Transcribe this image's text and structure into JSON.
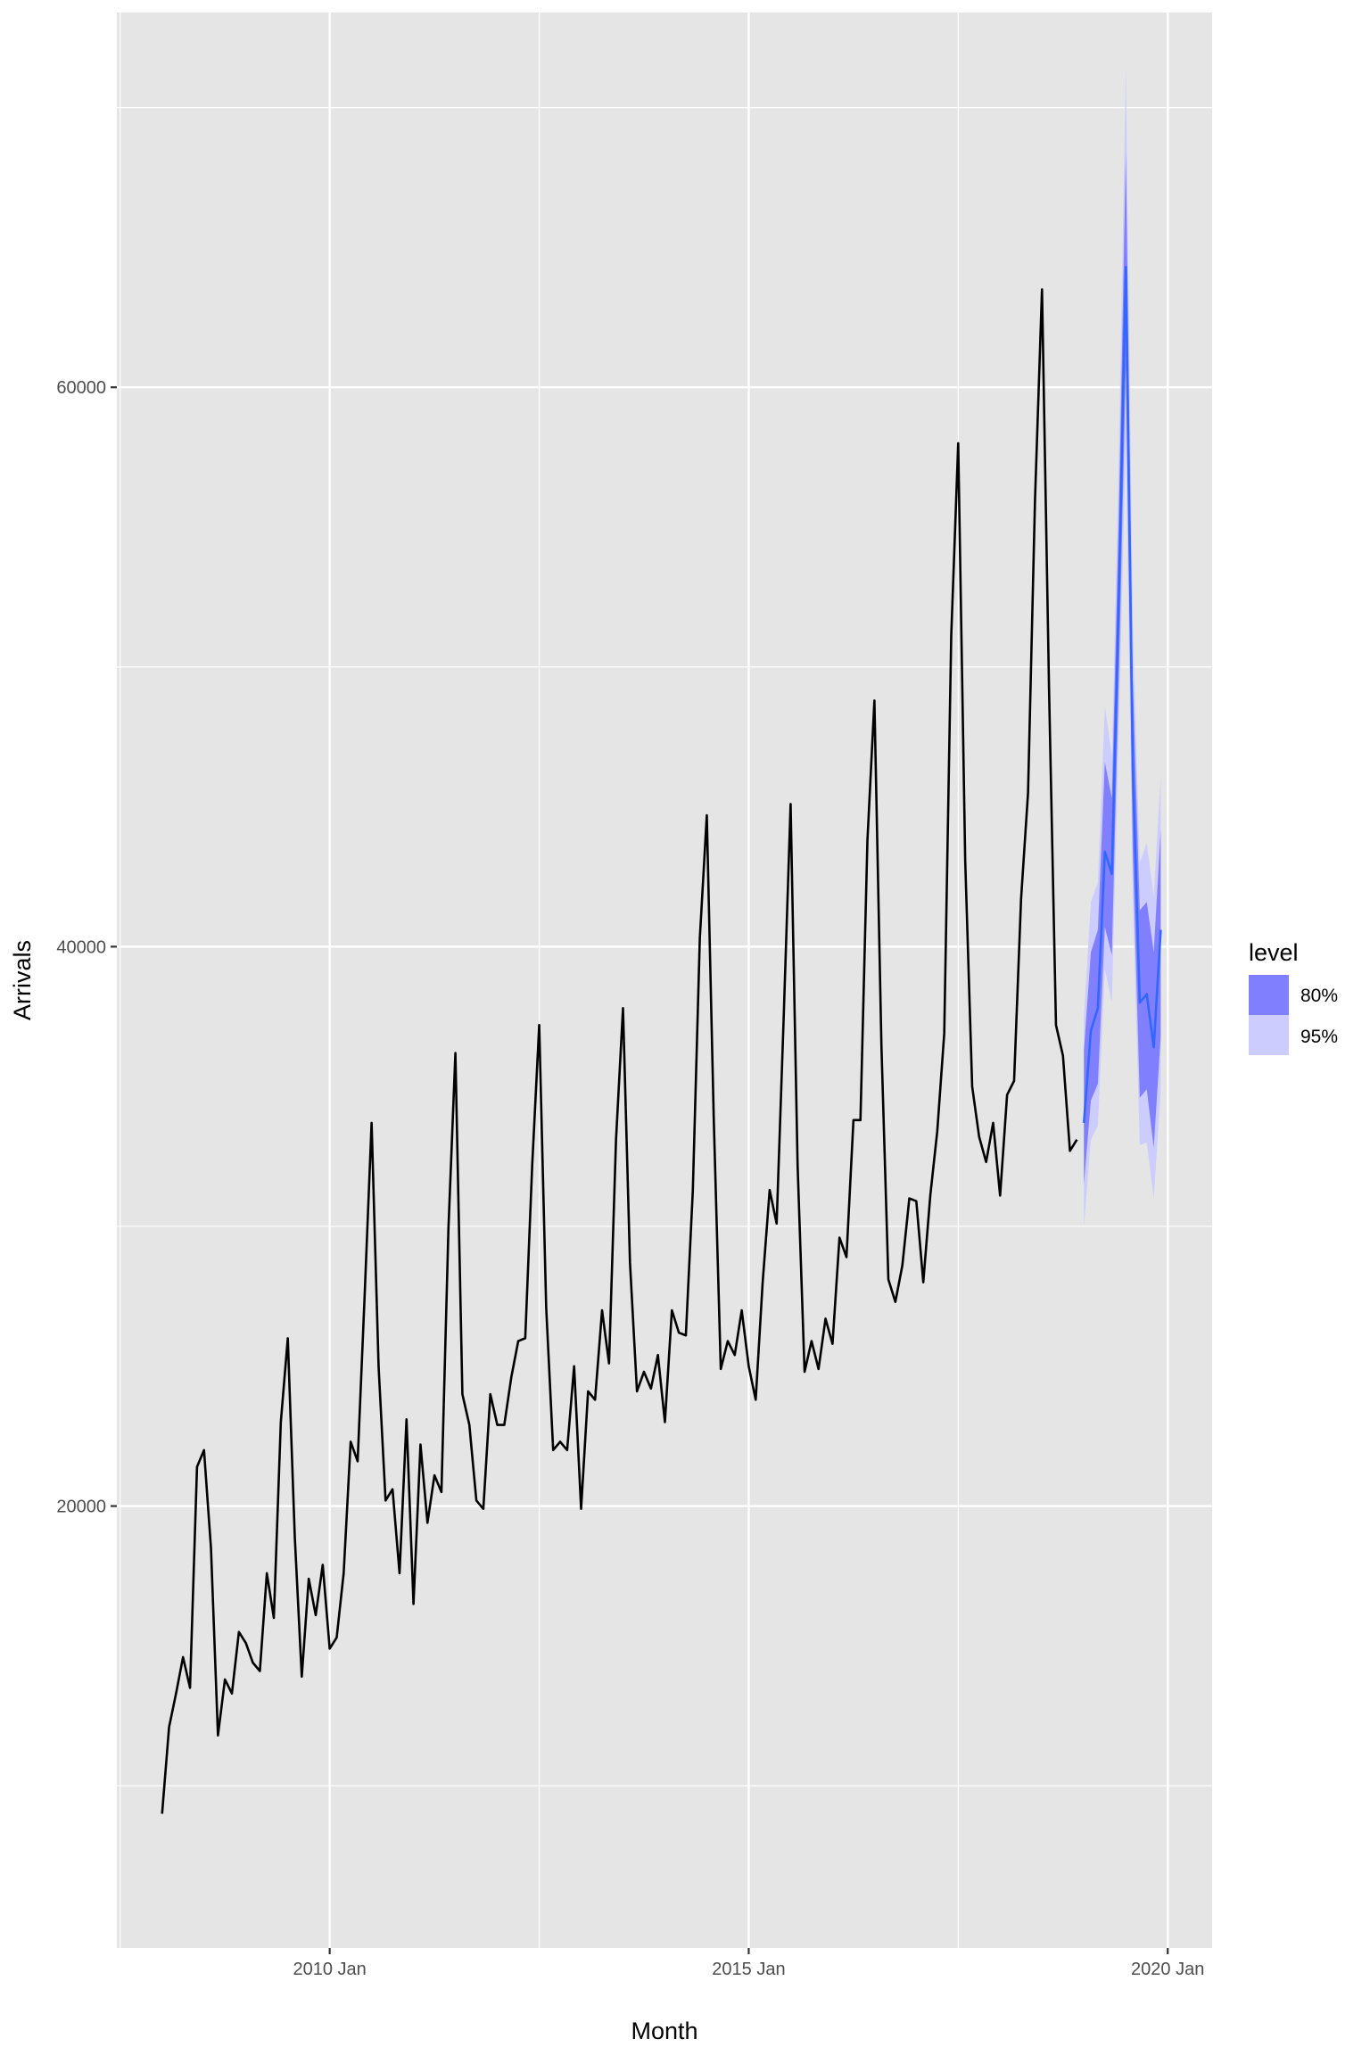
{
  "chart_data": {
    "type": "line",
    "xlabel": "Month",
    "ylabel": "Arrivals",
    "x_ticks": [
      {
        "label": "2010 Jan",
        "value": 2010.0
      },
      {
        "label": "2015 Jan",
        "value": 2015.0
      },
      {
        "label": "2020 Jan",
        "value": 2020.0
      }
    ],
    "y_ticks": [
      {
        "label": "20000",
        "value": 20000
      },
      {
        "label": "40000",
        "value": 40000
      },
      {
        "label": "60000",
        "value": 60000
      }
    ],
    "xlim": [
      2007.46,
      2020.53
    ],
    "ylim": [
      4200,
      73400
    ],
    "grid": true,
    "legend_position": "right",
    "legend": {
      "title": "level",
      "items": [
        {
          "label": "80%",
          "color": "#8080ff"
        },
        {
          "label": "95%",
          "color": "#ccccff"
        }
      ]
    },
    "colors": {
      "panel": "#e5e5e5",
      "grid": "#ffffff",
      "history_line": "#000000",
      "forecast_line": "#3366ff",
      "band_80": "#8080ff",
      "band_95": "#ccccff"
    },
    "history": {
      "start": "2008-01",
      "values": [
        9000,
        12100,
        13300,
        14600,
        13500,
        21400,
        22000,
        18500,
        11800,
        13800,
        13300,
        15500,
        15100,
        14400,
        14100,
        17600,
        16000,
        23000,
        26000,
        18900,
        13900,
        17400,
        16100,
        17900,
        14900,
        15300,
        17600,
        22300,
        21600,
        27500,
        33700,
        25000,
        20200,
        20600,
        17600,
        23100,
        16500,
        22200,
        19400,
        21100,
        20500,
        29900,
        36200,
        24000,
        22900,
        20200,
        19900,
        24000,
        22900,
        22900,
        24600,
        25900,
        26000,
        32200,
        37200,
        27100,
        22000,
        22300,
        22000,
        25000,
        19900,
        24100,
        23800,
        27000,
        25100,
        33100,
        37800,
        28700,
        24100,
        24800,
        24200,
        25400,
        23000,
        27000,
        26200,
        26100,
        31300,
        40300,
        44700,
        33800,
        24900,
        25900,
        25400,
        27000,
        25000,
        23800,
        28000,
        31300,
        30100,
        37400,
        45100,
        32200,
        24800,
        25900,
        24900,
        26700,
        25800,
        29600,
        28900,
        33800,
        33800,
        43800,
        48800,
        36500,
        28100,
        27300,
        28600,
        31000,
        30900,
        28000,
        31100,
        33400,
        36900,
        51100,
        58000,
        43100,
        35000,
        33200,
        32300,
        33700,
        31100,
        34700,
        35200,
        41700,
        45500,
        56000,
        63500,
        49300,
        37200,
        36100,
        32700,
        33100
      ]
    },
    "forecast": {
      "start": "2019-01",
      "mean": [
        33700,
        37000,
        37800,
        43400,
        42600,
        52500,
        64300,
        46400,
        38000,
        38300,
        36400,
        40600
      ],
      "lo80": [
        31500,
        34500,
        35100,
        40700,
        39700,
        49600,
        60700,
        43300,
        34600,
        34900,
        32800,
        36800
      ],
      "hi80": [
        36300,
        39800,
        40600,
        46600,
        45300,
        55400,
        68400,
        49600,
        41300,
        41600,
        39800,
        44200
      ],
      "lo95": [
        30000,
        33100,
        33600,
        39200,
        38000,
        47800,
        58100,
        41700,
        32900,
        33000,
        31000,
        34800
      ],
      "hi95": [
        37500,
        41600,
        42300,
        48600,
        46800,
        57500,
        71400,
        51600,
        43000,
        43700,
        41800,
        46100
      ]
    }
  }
}
